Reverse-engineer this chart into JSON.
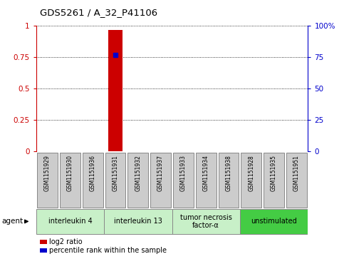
{
  "title": "GDS5261 / A_32_P41106",
  "samples": [
    "GSM1151929",
    "GSM1151930",
    "GSM1151936",
    "GSM1151931",
    "GSM1151932",
    "GSM1151937",
    "GSM1151933",
    "GSM1151934",
    "GSM1151938",
    "GSM1151928",
    "GSM1151935",
    "GSM1151951"
  ],
  "log2_ratio_idx": 3,
  "log2_ratio_val": 0.967,
  "percentile_rank_idx": 3,
  "percentile_rank_val": 0.77,
  "ylim_left": [
    0,
    1
  ],
  "ylim_right": [
    0,
    100
  ],
  "yticks_left": [
    0,
    0.25,
    0.5,
    0.75,
    1.0
  ],
  "yticks_right": [
    0,
    25,
    50,
    75,
    100
  ],
  "ytick_labels_left": [
    "0",
    "0.25",
    "0.5",
    "0.75",
    "1"
  ],
  "ytick_labels_right": [
    "0",
    "25",
    "50",
    "75",
    "100%"
  ],
  "agents": [
    {
      "label": "interleukin 4",
      "start": 0,
      "end": 3,
      "color": "#c8f0c8"
    },
    {
      "label": "interleukin 13",
      "start": 3,
      "end": 6,
      "color": "#c8f0c8"
    },
    {
      "label": "tumor necrosis\nfactor-α",
      "start": 6,
      "end": 9,
      "color": "#c8f0c8"
    },
    {
      "label": "unstimulated",
      "start": 9,
      "end": 12,
      "color": "#44cc44"
    }
  ],
  "agent_label": "agent",
  "legend_items": [
    {
      "color": "#cc0000",
      "label": "log2 ratio"
    },
    {
      "color": "#0000cc",
      "label": "percentile rank within the sample"
    }
  ],
  "bar_color": "#cc0000",
  "dot_color": "#0000cc",
  "sample_box_color": "#cccccc",
  "sample_box_edge_color": "#888888",
  "left_tick_color": "#cc0000",
  "right_tick_color": "#0000cc",
  "n_samples": 12
}
